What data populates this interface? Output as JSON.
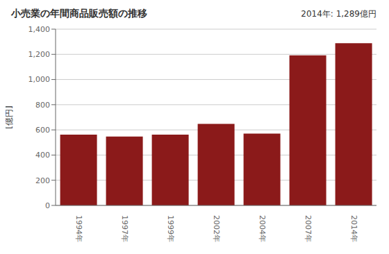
{
  "chart_data": {
    "type": "bar",
    "title": "小売業の年間商品販売額の推移",
    "ylabel": "[億円]",
    "annotation": "2014年: 1,289億円",
    "categories": [
      "1994年",
      "1997年",
      "1999年",
      "2002年",
      "2004年",
      "2007年",
      "2014年"
    ],
    "values": [
      562,
      547,
      562,
      648,
      571,
      1192,
      1289
    ],
    "color": "#8B1A1A",
    "ylim": [
      0,
      1400
    ],
    "yticks": [
      0,
      200,
      400,
      600,
      800,
      {
        "value": 1000,
        "label": "1,000"
      },
      {
        "value": 1200,
        "label": "1,200"
      },
      {
        "value": 1400,
        "label": "1,400"
      }
    ],
    "grid": true
  }
}
